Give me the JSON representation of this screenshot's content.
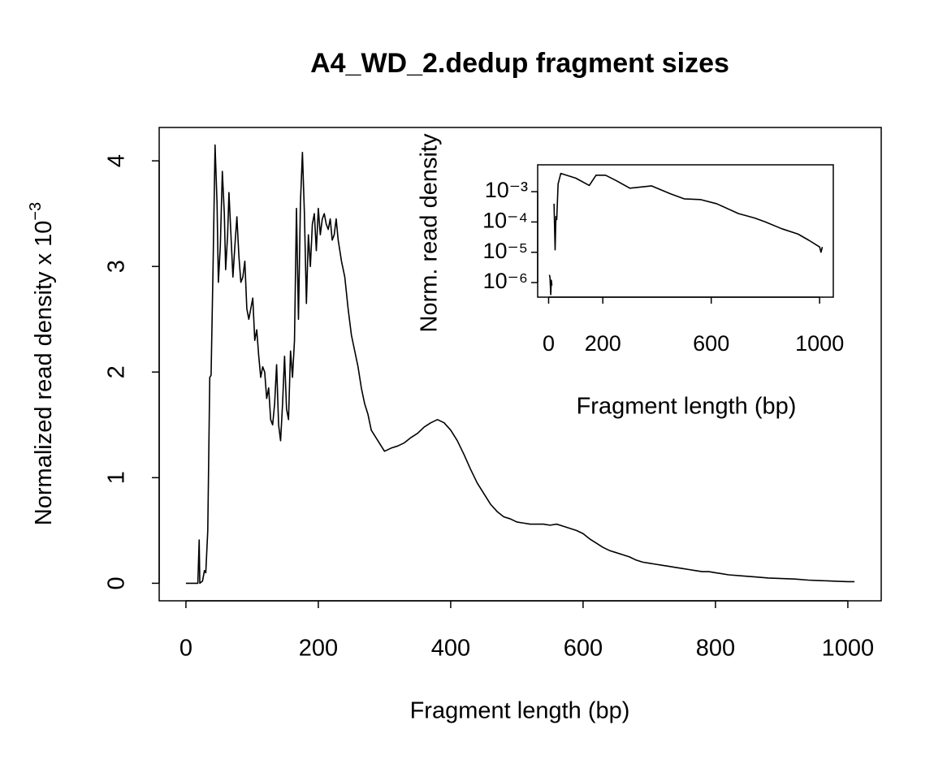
{
  "chart_data": [
    {
      "type": "line",
      "title": "A4_WD_2.dedup fragment sizes",
      "xlabel": "Fragment length (bp)",
      "ylabel": "Normalized read density x 10",
      "ylabel_superscript": "−3",
      "xlim": [
        -40.4,
        1050.4
      ],
      "ylim": [
        -0.166,
        4.316
      ],
      "xticks": [
        0,
        200,
        400,
        600,
        800,
        1000
      ],
      "yticks": [
        0,
        1,
        2,
        3,
        4
      ],
      "color": "#000000",
      "log_y": false,
      "x": [
        0,
        18,
        19,
        20,
        21,
        25,
        28,
        30,
        33,
        36,
        38,
        41,
        44,
        47,
        49,
        52,
        55,
        58,
        60,
        63,
        65,
        68,
        71,
        74,
        77,
        80,
        83,
        86,
        89,
        92,
        95,
        98,
        101,
        104,
        107,
        110,
        113,
        116,
        119,
        122,
        125,
        128,
        131,
        134,
        137,
        140,
        143,
        146,
        149,
        152,
        155,
        158,
        161,
        164,
        167,
        170,
        173,
        176,
        179,
        182,
        185,
        188,
        191,
        194,
        197,
        200,
        203,
        206,
        209,
        212,
        215,
        218,
        221,
        224,
        227,
        230,
        235,
        240,
        245,
        250,
        255,
        260,
        265,
        270,
        275,
        280,
        285,
        290,
        295,
        300,
        310,
        320,
        330,
        340,
        350,
        360,
        370,
        380,
        390,
        400,
        410,
        420,
        430,
        440,
        450,
        460,
        470,
        480,
        490,
        500,
        510,
        520,
        530,
        540,
        550,
        560,
        570,
        580,
        590,
        600,
        610,
        620,
        630,
        640,
        650,
        660,
        670,
        680,
        690,
        700,
        710,
        720,
        730,
        740,
        750,
        760,
        770,
        780,
        790,
        800,
        820,
        840,
        860,
        880,
        900,
        920,
        940,
        960,
        980,
        1000,
        1010
      ],
      "values": [
        0,
        0,
        0.2,
        0.41,
        0,
        0.02,
        0.12,
        0.1,
        0.5,
        1.95,
        1.97,
        3.0,
        4.15,
        3.6,
        2.85,
        3.2,
        3.9,
        3.5,
        2.97,
        3.3,
        3.7,
        3.3,
        2.9,
        3.2,
        3.47,
        3.1,
        2.85,
        2.9,
        3.05,
        2.6,
        2.5,
        2.6,
        2.7,
        2.3,
        2.4,
        2.15,
        1.95,
        2.05,
        2.0,
        1.75,
        1.85,
        1.55,
        1.5,
        1.7,
        2.07,
        1.5,
        1.35,
        1.7,
        2.15,
        1.65,
        1.55,
        2.2,
        1.95,
        2.3,
        3.55,
        2.5,
        3.6,
        4.08,
        3.5,
        2.65,
        3.3,
        3.0,
        3.4,
        3.5,
        3.15,
        3.55,
        3.3,
        3.45,
        3.5,
        3.4,
        3.35,
        3.45,
        3.25,
        3.3,
        3.45,
        3.25,
        3.05,
        2.9,
        2.6,
        2.35,
        2.2,
        2.05,
        1.85,
        1.7,
        1.6,
        1.45,
        1.4,
        1.35,
        1.3,
        1.25,
        1.28,
        1.3,
        1.33,
        1.38,
        1.42,
        1.48,
        1.52,
        1.55,
        1.52,
        1.45,
        1.35,
        1.22,
        1.08,
        0.95,
        0.85,
        0.75,
        0.68,
        0.63,
        0.61,
        0.58,
        0.57,
        0.56,
        0.56,
        0.56,
        0.55,
        0.56,
        0.54,
        0.52,
        0.5,
        0.47,
        0.42,
        0.38,
        0.34,
        0.31,
        0.29,
        0.27,
        0.25,
        0.22,
        0.2,
        0.19,
        0.18,
        0.17,
        0.16,
        0.15,
        0.14,
        0.13,
        0.12,
        0.11,
        0.11,
        0.1,
        0.08,
        0.07,
        0.06,
        0.05,
        0.045,
        0.04,
        0.03,
        0.025,
        0.02,
        0.015,
        0.015
      ]
    },
    {
      "type": "line",
      "xlabel": "Fragment length (bp)",
      "ylabel": "Norm. read density",
      "xlim": [
        -40.4,
        1050.4
      ],
      "ylim": [
        3.3e-07,
        0.0077
      ],
      "log_y": true,
      "xticks": [
        0,
        200,
        600,
        1000
      ],
      "yticks": [
        {
          "value": 1e-06,
          "label": "10⁻⁶"
        },
        {
          "value": 1e-05,
          "label": "10⁻⁵"
        },
        {
          "value": 0.0001,
          "label": "10⁻⁴"
        },
        {
          "value": 0.001,
          "label": "10⁻³"
        }
      ],
      "color": "#000000",
      "x": [
        3,
        5,
        8,
        10,
        12,
        15,
        20,
        24,
        27,
        30,
        35,
        45,
        100,
        150,
        175,
        210,
        250,
        300,
        380,
        450,
        500,
        560,
        620,
        700,
        760,
        800,
        860,
        920,
        960,
        1000,
        1005,
        1010
      ],
      "values": [
        1.8e-06,
        1.5e-06,
        4e-07,
        1.2e-06,
        8e-07,
        null,
        0.0004,
        1.2e-05,
        0.00015,
        0.00012,
        0.0018,
        0.004,
        0.0028,
        0.0016,
        0.0035,
        0.0035,
        0.0023,
        0.0013,
        0.00155,
        0.00085,
        0.00058,
        0.00055,
        0.0004,
        0.00019,
        0.000135,
        0.0001,
        6e-05,
        4e-05,
        2.5e-05,
        1.5e-05,
        1e-05,
        1.5e-05
      ]
    }
  ]
}
